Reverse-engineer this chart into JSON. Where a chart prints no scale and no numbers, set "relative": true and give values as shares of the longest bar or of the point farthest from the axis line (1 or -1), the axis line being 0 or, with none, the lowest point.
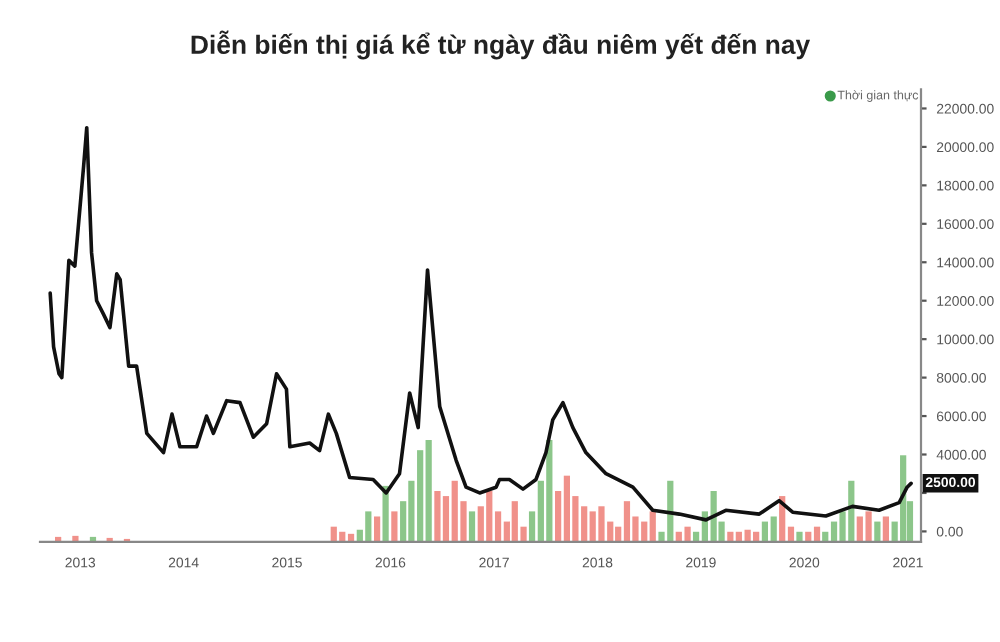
{
  "chart_data": [
    {
      "type": "line",
      "title": "Diễn biến thị giá kể từ ngày đầu niêm yết đến nay",
      "series": [
        {
          "color": "#111111",
          "x": [
            "2012-09-17",
            "2012-09-29",
            "2012-10-18",
            "2012-10-28",
            "2012-11-22",
            "2012-12-13",
            "2013-01-13",
            "2013-01-24",
            "2013-02-10",
            "2013-02-28",
            "2013-03-24",
            "2013-04-16",
            "2013-05-10",
            "2013-05-22",
            "2013-06-21",
            "2013-07-19",
            "2013-08-24",
            "2013-10-22",
            "2013-11-21",
            "2013-12-19",
            "2014-02-16",
            "2014-03-23",
            "2014-04-16",
            "2014-06-02",
            "2014-07-19",
            "2014-09-04",
            "2014-10-21",
            "2014-11-25",
            "2014-12-30",
            "2015-01-11",
            "2015-03-22",
            "2015-04-26",
            "2015-05-27",
            "2015-06-24",
            "2015-08-10",
            "2015-11-01",
            "2015-12-17",
            "2016-02-02",
            "2016-03-09",
            "2016-04-08",
            "2016-05-11",
            "2016-06-23",
            "2016-08-20",
            "2016-09-24",
            "2016-11-11",
            "2017-01-08",
            "2017-01-20",
            "2017-02-24",
            "2017-04-13",
            "2017-05-29",
            "2017-07-03",
            "2017-07-27",
            "2017-09-01",
            "2017-10-06",
            "2017-11-21",
            "2018-01-31",
            "2018-05-06",
            "2018-07-15",
            "2018-10-17",
            "2019-01-19",
            "2019-03-30",
            "2019-07-26",
            "2019-10-04",
            "2019-11-21",
            "2020-03-17",
            "2020-06-19",
            "2020-09-21",
            "2020-12-01",
            "2020-12-29",
            "2021-01-12"
          ],
          "values": [
            12400,
            9600,
            8200,
            8000,
            14100,
            13800,
            19000,
            21000,
            14500,
            12000,
            11300,
            10600,
            13400,
            13100,
            8600,
            8600,
            5100,
            4100,
            6100,
            4400,
            4400,
            6000,
            5100,
            6800,
            6700,
            4900,
            5600,
            8200,
            7400,
            4400,
            4600,
            4200,
            6100,
            5100,
            2800,
            2700,
            2000,
            3000,
            7200,
            5400,
            13600,
            6500,
            3700,
            2300,
            2000,
            2300,
            2700,
            2700,
            2200,
            2700,
            4100,
            5800,
            6700,
            5400,
            4100,
            3000,
            2300,
            1100,
            900,
            600,
            1100,
            900,
            1600,
            1000,
            800,
            1300,
            1100,
            1500,
            2300,
            2500
          ]
        }
      ],
      "xlim": [
        "2012-08-12",
        "2021-02-16"
      ],
      "xticks": [
        {
          "value": "2013-01-01",
          "label": "2013"
        },
        {
          "value": "2014-01-01",
          "label": "2014"
        },
        {
          "value": "2015-01-01",
          "label": "2015"
        },
        {
          "value": "2016-01-01",
          "label": "2016"
        },
        {
          "value": "2017-01-01",
          "label": "2017"
        },
        {
          "value": "2018-01-01",
          "label": "2018"
        },
        {
          "value": "2019-01-01",
          "label": "2019"
        },
        {
          "value": "2020-01-01",
          "label": "2020"
        },
        {
          "value": "2021-01-01",
          "label": "2021"
        }
      ],
      "ylim": [
        -550,
        23000
      ],
      "yticks": [
        {
          "value": 0,
          "label": "0.00"
        },
        {
          "value": 2000,
          "label": null
        },
        {
          "value": 4000,
          "label": "4000.00"
        },
        {
          "value": 6000,
          "label": "6000.00"
        },
        {
          "value": 8000,
          "label": "8000.00"
        },
        {
          "value": 10000,
          "label": "10000.00"
        },
        {
          "value": 12000,
          "label": "12000.00"
        },
        {
          "value": 14000,
          "label": "14000.00"
        },
        {
          "value": 16000,
          "label": "16000.00"
        },
        {
          "value": 18000,
          "label": "18000.00"
        },
        {
          "value": 20000,
          "label": "20000.00"
        },
        {
          "value": 22000,
          "label": "22000.00"
        }
      ],
      "grid": false,
      "marker": "none",
      "line_style": "solid",
      "annotations": [
        "Thời gian thực",
        {
          "text": "2500.00",
          "x": "2021-01-12",
          "y": 2500
        }
      ]
    },
    {
      "type": "bar",
      "relative": true,
      "xlim": [
        "2012-08-12",
        "2021-02-16"
      ],
      "x": [
        "2012-10-15",
        "2012-12-15",
        "2013-02-15",
        "2013-04-15",
        "2013-06-15",
        "2015-06-15",
        "2015-07-15",
        "2015-08-15",
        "2015-09-15",
        "2015-10-15",
        "2015-11-15",
        "2015-12-15",
        "2016-01-15",
        "2016-02-15",
        "2016-03-15",
        "2016-04-15",
        "2016-05-15",
        "2016-06-15",
        "2016-07-15",
        "2016-08-15",
        "2016-09-15",
        "2016-10-15",
        "2016-11-15",
        "2016-12-15",
        "2017-01-15",
        "2017-02-15",
        "2017-03-15",
        "2017-04-15",
        "2017-05-15",
        "2017-06-15",
        "2017-07-15",
        "2017-08-15",
        "2017-09-15",
        "2017-10-15",
        "2017-11-15",
        "2017-12-15",
        "2018-01-15",
        "2018-02-15",
        "2018-03-15",
        "2018-04-15",
        "2018-05-15",
        "2018-06-15",
        "2018-07-15",
        "2018-08-15",
        "2018-09-15",
        "2018-10-15",
        "2018-11-15",
        "2018-12-15",
        "2019-01-15",
        "2019-02-15",
        "2019-03-15",
        "2019-04-15",
        "2019-05-15",
        "2019-06-15",
        "2019-07-15",
        "2019-08-15",
        "2019-09-15",
        "2019-10-15",
        "2019-11-15",
        "2019-12-15",
        "2020-01-15",
        "2020-02-15",
        "2020-03-15",
        "2020-04-15",
        "2020-05-15",
        "2020-06-15",
        "2020-07-15",
        "2020-08-15",
        "2020-09-15",
        "2020-10-15",
        "2020-11-15",
        "2020-12-15",
        "2021-01-08"
      ],
      "values": [
        0.05,
        0.06,
        0.05,
        0.04,
        0.03,
        0.15,
        0.1,
        0.08,
        0.12,
        0.3,
        0.25,
        0.55,
        0.3,
        0.4,
        0.6,
        0.9,
        1.0,
        0.5,
        0.45,
        0.6,
        0.4,
        0.3,
        0.35,
        0.5,
        0.3,
        0.2,
        0.4,
        0.15,
        0.3,
        0.6,
        1.0,
        0.5,
        0.65,
        0.45,
        0.35,
        0.3,
        0.35,
        0.2,
        0.15,
        0.4,
        0.25,
        0.2,
        0.3,
        0.1,
        0.6,
        0.1,
        0.15,
        0.1,
        0.3,
        0.5,
        0.2,
        0.1,
        0.1,
        0.12,
        0.1,
        0.2,
        0.25,
        0.45,
        0.15,
        0.1,
        0.1,
        0.15,
        0.1,
        0.2,
        0.3,
        0.6,
        0.25,
        0.3,
        0.2,
        0.25,
        0.2,
        0.85,
        0.4
      ],
      "colors": [
        "#f0918a",
        "#f0918a",
        "#8cc68a",
        "#f0918a",
        "#f0918a",
        "#f0918a",
        "#f0918a",
        "#f0918a",
        "#8cc68a",
        "#8cc68a",
        "#f0918a",
        "#8cc68a",
        "#f0918a",
        "#8cc68a",
        "#8cc68a",
        "#8cc68a",
        "#8cc68a",
        "#f0918a",
        "#f0918a",
        "#f0918a",
        "#f0918a",
        "#8cc68a",
        "#f0918a",
        "#f0918a",
        "#f0918a",
        "#f0918a",
        "#f0918a",
        "#f0918a",
        "#8cc68a",
        "#8cc68a",
        "#8cc68a",
        "#f0918a",
        "#f0918a",
        "#f0918a",
        "#f0918a",
        "#f0918a",
        "#f0918a",
        "#f0918a",
        "#f0918a",
        "#f0918a",
        "#f0918a",
        "#f0918a",
        "#f0918a",
        "#8cc68a",
        "#8cc68a",
        "#f0918a",
        "#f0918a",
        "#8cc68a",
        "#8cc68a",
        "#8cc68a",
        "#8cc68a",
        "#f0918a",
        "#f0918a",
        "#f0918a",
        "#f0918a",
        "#8cc68a",
        "#8cc68a",
        "#f0918a",
        "#f0918a",
        "#8cc68a",
        "#f0918a",
        "#f0918a",
        "#8cc68a",
        "#8cc68a",
        "#8cc68a",
        "#8cc68a",
        "#f0918a",
        "#f0918a",
        "#8cc68a",
        "#f0918a",
        "#8cc68a",
        "#8cc68a",
        "#8cc68a"
      ]
    }
  ]
}
